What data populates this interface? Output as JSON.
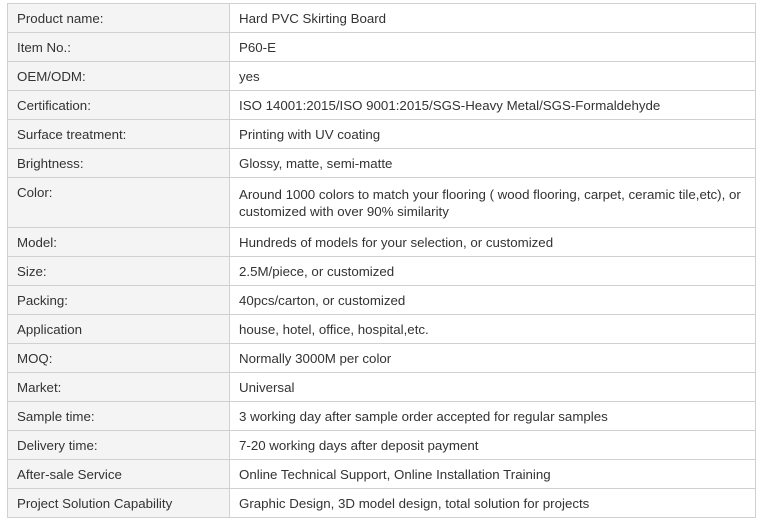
{
  "rows": [
    {
      "label": "Product name:",
      "value": "Hard PVC Skirting Board"
    },
    {
      "label": "Item No.:",
      "value": "P60-E"
    },
    {
      "label": "OEM/ODM:",
      "value": "yes"
    },
    {
      "label": "Certification:",
      "value": "ISO 14001:2015/ISO 9001:2015/SGS-Heavy Metal/SGS-Formaldehyde"
    },
    {
      "label": "Surface treatment:",
      "value": "Printing with UV coating"
    },
    {
      "label": "Brightness:",
      "value": "Glossy, matte, semi-matte"
    },
    {
      "label": "Color:",
      "value": "Around 1000 colors to match your flooring ( wood flooring, carpet, ceramic tile,etc), or customized with over 90% similarity"
    },
    {
      "label": "Model:",
      "value": "Hundreds of models for your selection, or customized"
    },
    {
      "label": "Size:",
      "value": "2.5M/piece, or customized"
    },
    {
      "label": "Packing:",
      "value": "40pcs/carton, or customized"
    },
    {
      "label": "Application",
      "value": "house, hotel, office, hospital,etc."
    },
    {
      "label": "MOQ:",
      "value": "Normally 3000M per color"
    },
    {
      "label": "Market:",
      "value": "Universal"
    },
    {
      "label": "Sample time:",
      "value": "3 working day after sample order accepted for regular samples"
    },
    {
      "label": "Delivery time:",
      "value": "7-20 working days after deposit payment"
    },
    {
      "label": "After-sale Service",
      "value": "Online Technical Support, Online Installation Training"
    },
    {
      "label": "Project Solution Capability",
      "value": "Graphic Design, 3D model design, total solution for projects"
    }
  ]
}
